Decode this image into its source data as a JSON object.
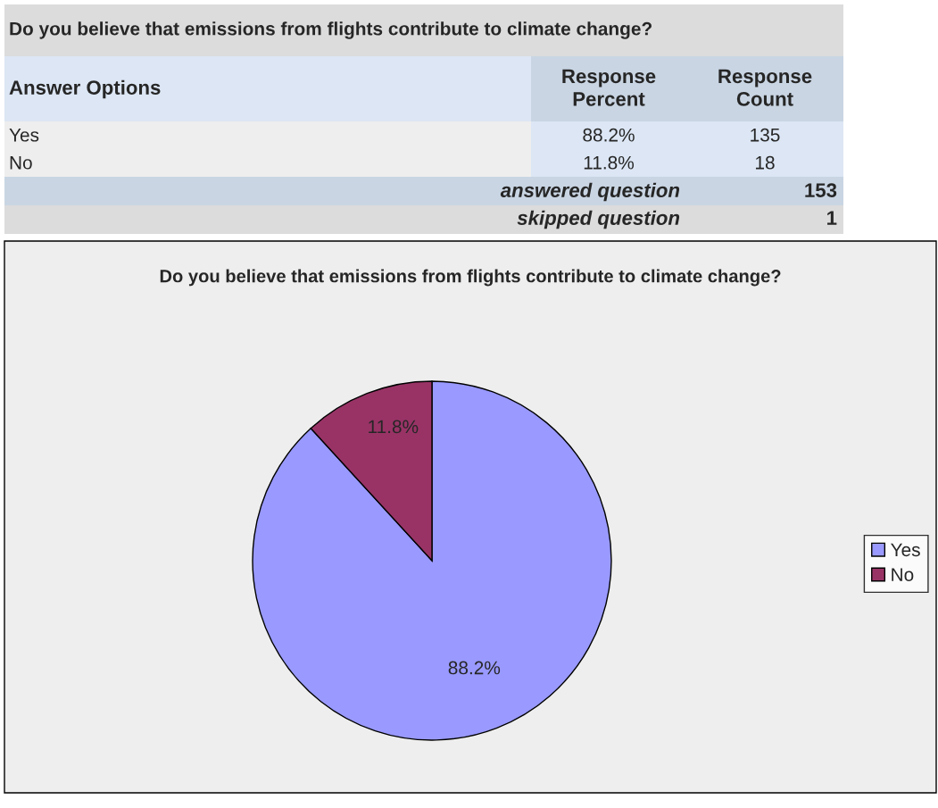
{
  "chart_data": [
    {
      "type": "other",
      "title": "Do you believe that emissions from flights contribute to climate change?",
      "annotations": [
        "Answer Options",
        "Response Percent",
        "Response Count",
        "Yes",
        "88.2%",
        "135",
        "No",
        "11.8%",
        "18",
        "answered question",
        "153",
        "skipped question",
        "1"
      ]
    },
    {
      "type": "pie",
      "title": "Do you believe that emissions from flights contribute to climate change?",
      "categories": [
        "Yes",
        "No"
      ],
      "values": [
        88.2,
        11.8
      ],
      "colors": [
        "#9999ff",
        "#993366"
      ],
      "value_labels": [
        "88.2%",
        "11.8%"
      ],
      "legend": "right"
    }
  ]
}
